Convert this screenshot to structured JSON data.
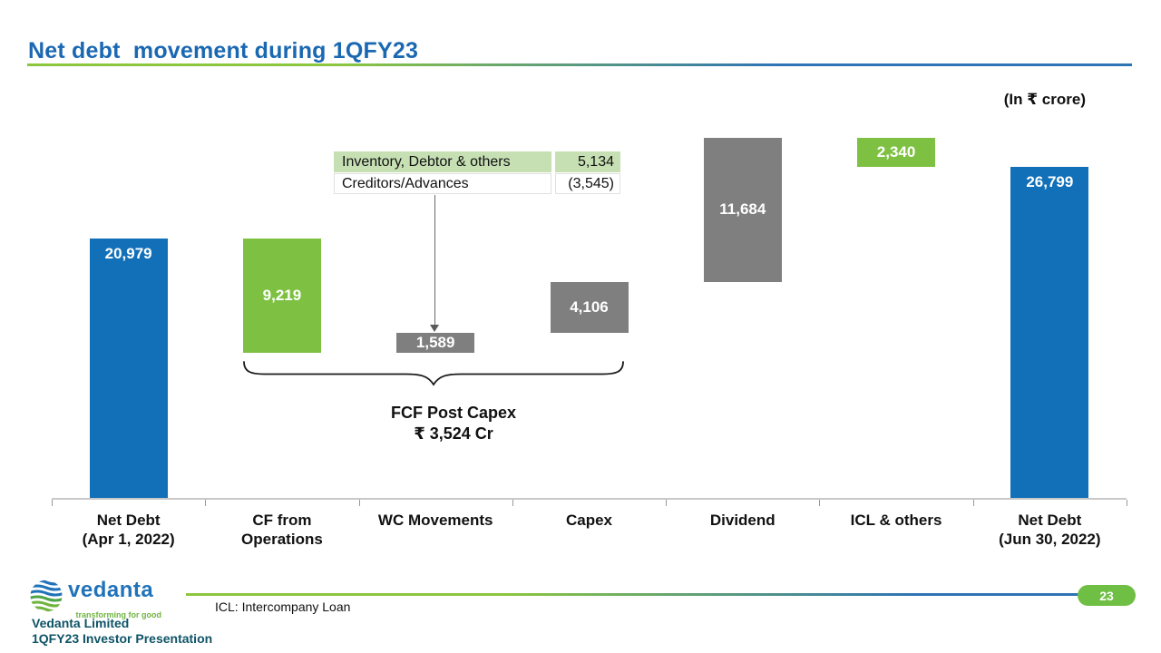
{
  "slide": {
    "title": "Net debt  movement during 1QFY23",
    "unit_label": "(In ₹ crore)",
    "footnote": "ICL: Intercompany Loan",
    "page_number": "23",
    "footer": {
      "company": "Vedanta Limited",
      "presentation": "1QFY23 Investor Presentation",
      "logo_wordmark": "vedanta",
      "logo_tagline": "transforming for good"
    }
  },
  "colors": {
    "total_bar": "#1270b8",
    "increase_bar": "#7f7f7f",
    "decrease_bar": "#7ec142",
    "title_blue": "#1a68b2",
    "rule_green": "#8cc63f",
    "rule_blue": "#2e74b5",
    "callout_highlight": "#c6e0b4",
    "badge_green": "#6fbf44",
    "footer_text": "#0e5366"
  },
  "chart_data": {
    "type": "bar",
    "subtype": "waterfall",
    "title": "Net debt movement during 1QFY23",
    "unit": "₹ crore",
    "ylim": [
      0,
      29139
    ],
    "grid": false,
    "categories": [
      [
        "Net Debt",
        "(Apr 1, 2022)"
      ],
      [
        "CF from",
        "Operations"
      ],
      [
        "WC Movements"
      ],
      [
        "Capex"
      ],
      [
        "Dividend"
      ],
      [
        "ICL & others"
      ],
      [
        "Net Debt",
        "(Jun 30, 2022)"
      ]
    ],
    "series": [
      {
        "name": "Net Debt (Apr 1, 2022)",
        "value": 20979,
        "label": "20,979",
        "kind": "total"
      },
      {
        "name": "CF from Operations",
        "value": -9219,
        "label": "9,219",
        "kind": "decrease"
      },
      {
        "name": "WC Movements",
        "value": 1589,
        "label": "1,589",
        "kind": "increase"
      },
      {
        "name": "Capex",
        "value": 4106,
        "label": "4,106",
        "kind": "increase"
      },
      {
        "name": "Dividend",
        "value": 11684,
        "label": "11,684",
        "kind": "increase"
      },
      {
        "name": "ICL & others",
        "value": -2340,
        "label": "2,340",
        "kind": "decrease"
      },
      {
        "name": "Net Debt (Jun 30, 2022)",
        "value": 26799,
        "label": "26,799",
        "kind": "total"
      }
    ],
    "callout": {
      "points_to": "WC Movements",
      "rows": [
        {
          "label": "Inventory, Debtor & others",
          "value": "5,134",
          "highlight": true
        },
        {
          "label": "Creditors/Advances",
          "value": "(3,545)",
          "highlight": false
        }
      ]
    },
    "annotation": {
      "line1": "FCF Post Capex",
      "line2": "₹ 3,524 Cr",
      "spans": [
        "CF from Operations",
        "WC Movements",
        "Capex"
      ]
    }
  }
}
